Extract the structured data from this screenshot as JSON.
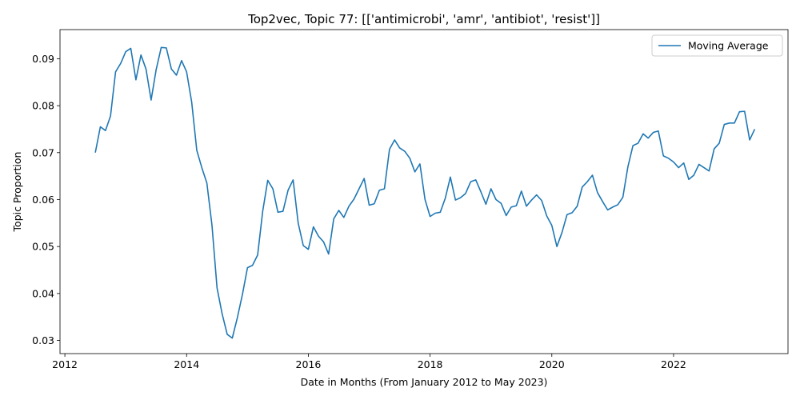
{
  "chart_data": {
    "type": "line",
    "title": "Top2vec, Topic 77: [['antimicrobi', 'amr', 'antibiot', 'resist']]",
    "xlabel": "Date in Months (From January 2012 to May 2023)",
    "ylabel": "Topic Proportion",
    "x_ticks": [
      2012,
      2014,
      2016,
      2018,
      2020,
      2022
    ],
    "x_tick_labels": [
      "2012",
      "2014",
      "2016",
      "2018",
      "2020",
      "2022"
    ],
    "y_ticks": [
      0.03,
      0.04,
      0.05,
      0.06,
      0.07,
      0.08,
      0.09
    ],
    "y_tick_labels": [
      "0.03",
      "0.04",
      "0.05",
      "0.06",
      "0.07",
      "0.08",
      "0.09"
    ],
    "xlim": [
      2011.92,
      2023.88
    ],
    "ylim": [
      0.0272,
      0.0962
    ],
    "grid": false,
    "legend_position": "top-right",
    "series": [
      {
        "name": "Moving Average",
        "color": "#1f77b4",
        "x": [
          2012.5,
          2012.583,
          2012.667,
          2012.75,
          2012.833,
          2012.917,
          2013.0,
          2013.083,
          2013.167,
          2013.25,
          2013.333,
          2013.417,
          2013.5,
          2013.583,
          2013.667,
          2013.75,
          2013.833,
          2013.917,
          2014.0,
          2014.083,
          2014.167,
          2014.25,
          2014.333,
          2014.417,
          2014.5,
          2014.583,
          2014.667,
          2014.75,
          2014.833,
          2014.917,
          2015.0,
          2015.083,
          2015.167,
          2015.25,
          2015.333,
          2015.417,
          2015.5,
          2015.583,
          2015.667,
          2015.75,
          2015.833,
          2015.917,
          2016.0,
          2016.083,
          2016.167,
          2016.25,
          2016.333,
          2016.417,
          2016.5,
          2016.583,
          2016.667,
          2016.75,
          2016.833,
          2016.917,
          2017.0,
          2017.083,
          2017.167,
          2017.25,
          2017.333,
          2017.417,
          2017.5,
          2017.583,
          2017.667,
          2017.75,
          2017.833,
          2017.917,
          2018.0,
          2018.083,
          2018.167,
          2018.25,
          2018.333,
          2018.417,
          2018.5,
          2018.583,
          2018.667,
          2018.75,
          2018.833,
          2018.917,
          2019.0,
          2019.083,
          2019.167,
          2019.25,
          2019.333,
          2019.417,
          2019.5,
          2019.583,
          2019.667,
          2019.75,
          2019.833,
          2019.917,
          2020.0,
          2020.083,
          2020.167,
          2020.25,
          2020.333,
          2020.417,
          2020.5,
          2020.583,
          2020.667,
          2020.75,
          2020.833,
          2020.917,
          2021.0,
          2021.083,
          2021.167,
          2021.25,
          2021.333,
          2021.417,
          2021.5,
          2021.583,
          2021.667,
          2021.75,
          2021.833,
          2021.917,
          2022.0,
          2022.083,
          2022.167,
          2022.25,
          2022.333,
          2022.417,
          2022.5,
          2022.583,
          2022.667,
          2022.75,
          2022.833,
          2022.917,
          2023.0,
          2023.083,
          2023.167,
          2023.25,
          2023.333
        ],
        "y": [
          0.07,
          0.0755,
          0.0747,
          0.0778,
          0.0872,
          0.089,
          0.0915,
          0.0922,
          0.0855,
          0.0908,
          0.0878,
          0.0812,
          0.0877,
          0.0924,
          0.0923,
          0.0878,
          0.0865,
          0.0896,
          0.0872,
          0.0808,
          0.0705,
          0.0668,
          0.0635,
          0.0545,
          0.0412,
          0.0357,
          0.0313,
          0.0305,
          0.0348,
          0.0398,
          0.0455,
          0.046,
          0.0482,
          0.0575,
          0.0641,
          0.0623,
          0.0573,
          0.0575,
          0.062,
          0.0642,
          0.055,
          0.0502,
          0.0494,
          0.0542,
          0.0522,
          0.051,
          0.0484,
          0.0559,
          0.0577,
          0.0562,
          0.0586,
          0.0601,
          0.0623,
          0.0645,
          0.0588,
          0.0591,
          0.062,
          0.0623,
          0.0707,
          0.0727,
          0.071,
          0.0703,
          0.0688,
          0.0659,
          0.0676,
          0.06,
          0.0564,
          0.0571,
          0.0573,
          0.0603,
          0.0648,
          0.0599,
          0.0604,
          0.0613,
          0.0638,
          0.0642,
          0.0617,
          0.059,
          0.0623,
          0.06,
          0.0592,
          0.0566,
          0.0584,
          0.0587,
          0.0618,
          0.0586,
          0.0599,
          0.061,
          0.0598,
          0.0565,
          0.0545,
          0.05,
          0.053,
          0.0568,
          0.0572,
          0.0586,
          0.0627,
          0.0638,
          0.0652,
          0.0615,
          0.0596,
          0.0578,
          0.0584,
          0.0589,
          0.0605,
          0.067,
          0.0715,
          0.072,
          0.074,
          0.0731,
          0.0743,
          0.0746,
          0.0693,
          0.0688,
          0.068,
          0.0668,
          0.0678,
          0.0643,
          0.0652,
          0.0675,
          0.0668,
          0.0661,
          0.0708,
          0.072,
          0.076,
          0.0763,
          0.0763,
          0.0787,
          0.0788,
          0.0727,
          0.075
        ]
      }
    ]
  }
}
